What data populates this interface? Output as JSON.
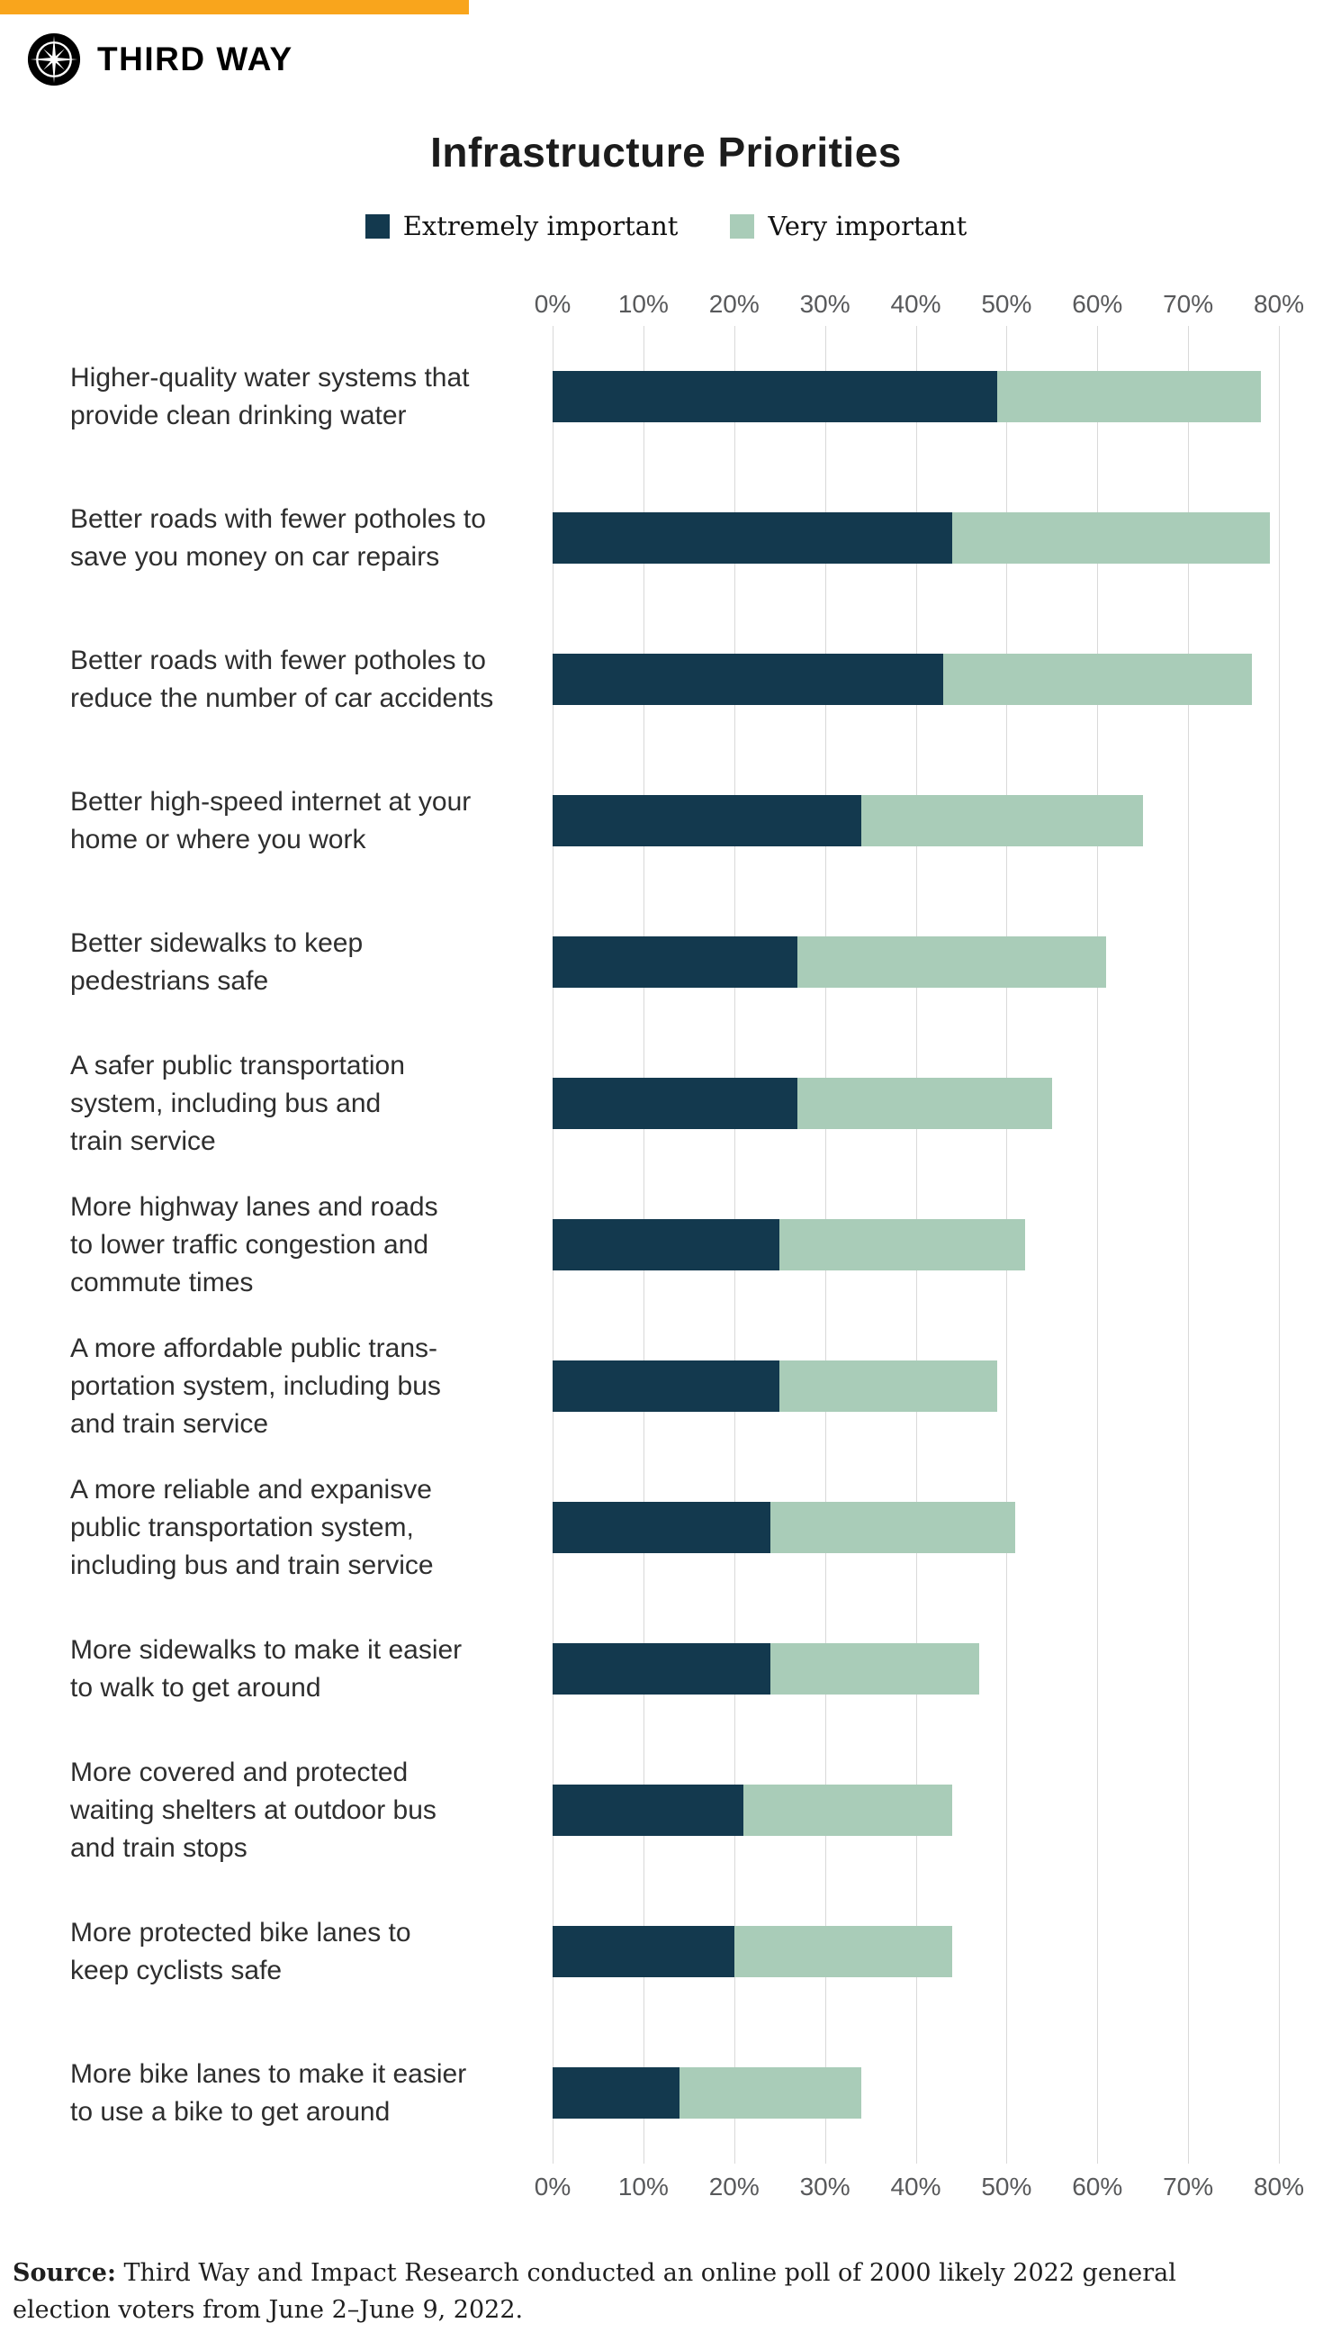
{
  "header": {
    "brand": "THIRD WAY"
  },
  "colors": {
    "accent": "#F9A51C",
    "extremely": "#13394E",
    "very": "#A9CCB8",
    "grid": "#D9D9D9",
    "axis_text": "#58595B",
    "label_text": "#2E2E2E"
  },
  "legend": [
    {
      "label": "Extremely important"
    },
    {
      "label": "Very important"
    }
  ],
  "chart_data": {
    "type": "bar",
    "orientation": "horizontal",
    "stacked": true,
    "title": "Infrastructure Priorities",
    "xlabel": "",
    "ylabel": "",
    "xlim": [
      0,
      80
    ],
    "tick_values": [
      0,
      10,
      20,
      30,
      40,
      50,
      60,
      70,
      80
    ],
    "x_ticks": [
      "0%",
      "10%",
      "20%",
      "30%",
      "40%",
      "50%",
      "60%",
      "70%",
      "80%"
    ],
    "grid": "vertical",
    "legend_position": "top-center",
    "categories": [
      "Higher-quality water systems that\nprovide clean drinking water",
      "Better roads with fewer potholes to\nsave you money on car repairs",
      "Better roads with fewer potholes to\nreduce the number of car accidents",
      "Better high-speed internet at your\nhome or where you work",
      "Better sidewalks to keep\npedestrians safe",
      "A safer public transportation\nsystem, including bus and\ntrain service",
      "More highway lanes and roads\nto lower traffic congestion and\ncommute times",
      "A more affordable public trans-\nportation system, including bus\nand train service",
      "A more reliable and expanisve\npublic transportation system,\nincluding bus and train service",
      "More sidewalks to make it easier\nto walk to get around",
      "More covered and protected\nwaiting shelters at outdoor bus\nand train stops",
      "More protected bike lanes to\nkeep cyclists safe",
      "More bike lanes to make it easier\nto use a bike to get around"
    ],
    "series": [
      {
        "name": "Extremely important",
        "values": [
          49,
          44,
          43,
          34,
          27,
          27,
          25,
          25,
          24,
          24,
          21,
          20,
          14
        ]
      },
      {
        "name": "Very important",
        "values": [
          29,
          35,
          34,
          31,
          34,
          28,
          27,
          24,
          27,
          23,
          23,
          24,
          20
        ]
      }
    ],
    "stacked_totals": [
      78,
      79,
      77,
      65,
      61,
      55,
      52,
      49,
      51,
      47,
      44,
      44,
      34
    ]
  },
  "footer": {
    "source_label": "Source:",
    "source_text": " Third Way and Impact Research conducted an online poll of 2000 likely 2022 general election voters from June 2–June 9, 2022."
  }
}
